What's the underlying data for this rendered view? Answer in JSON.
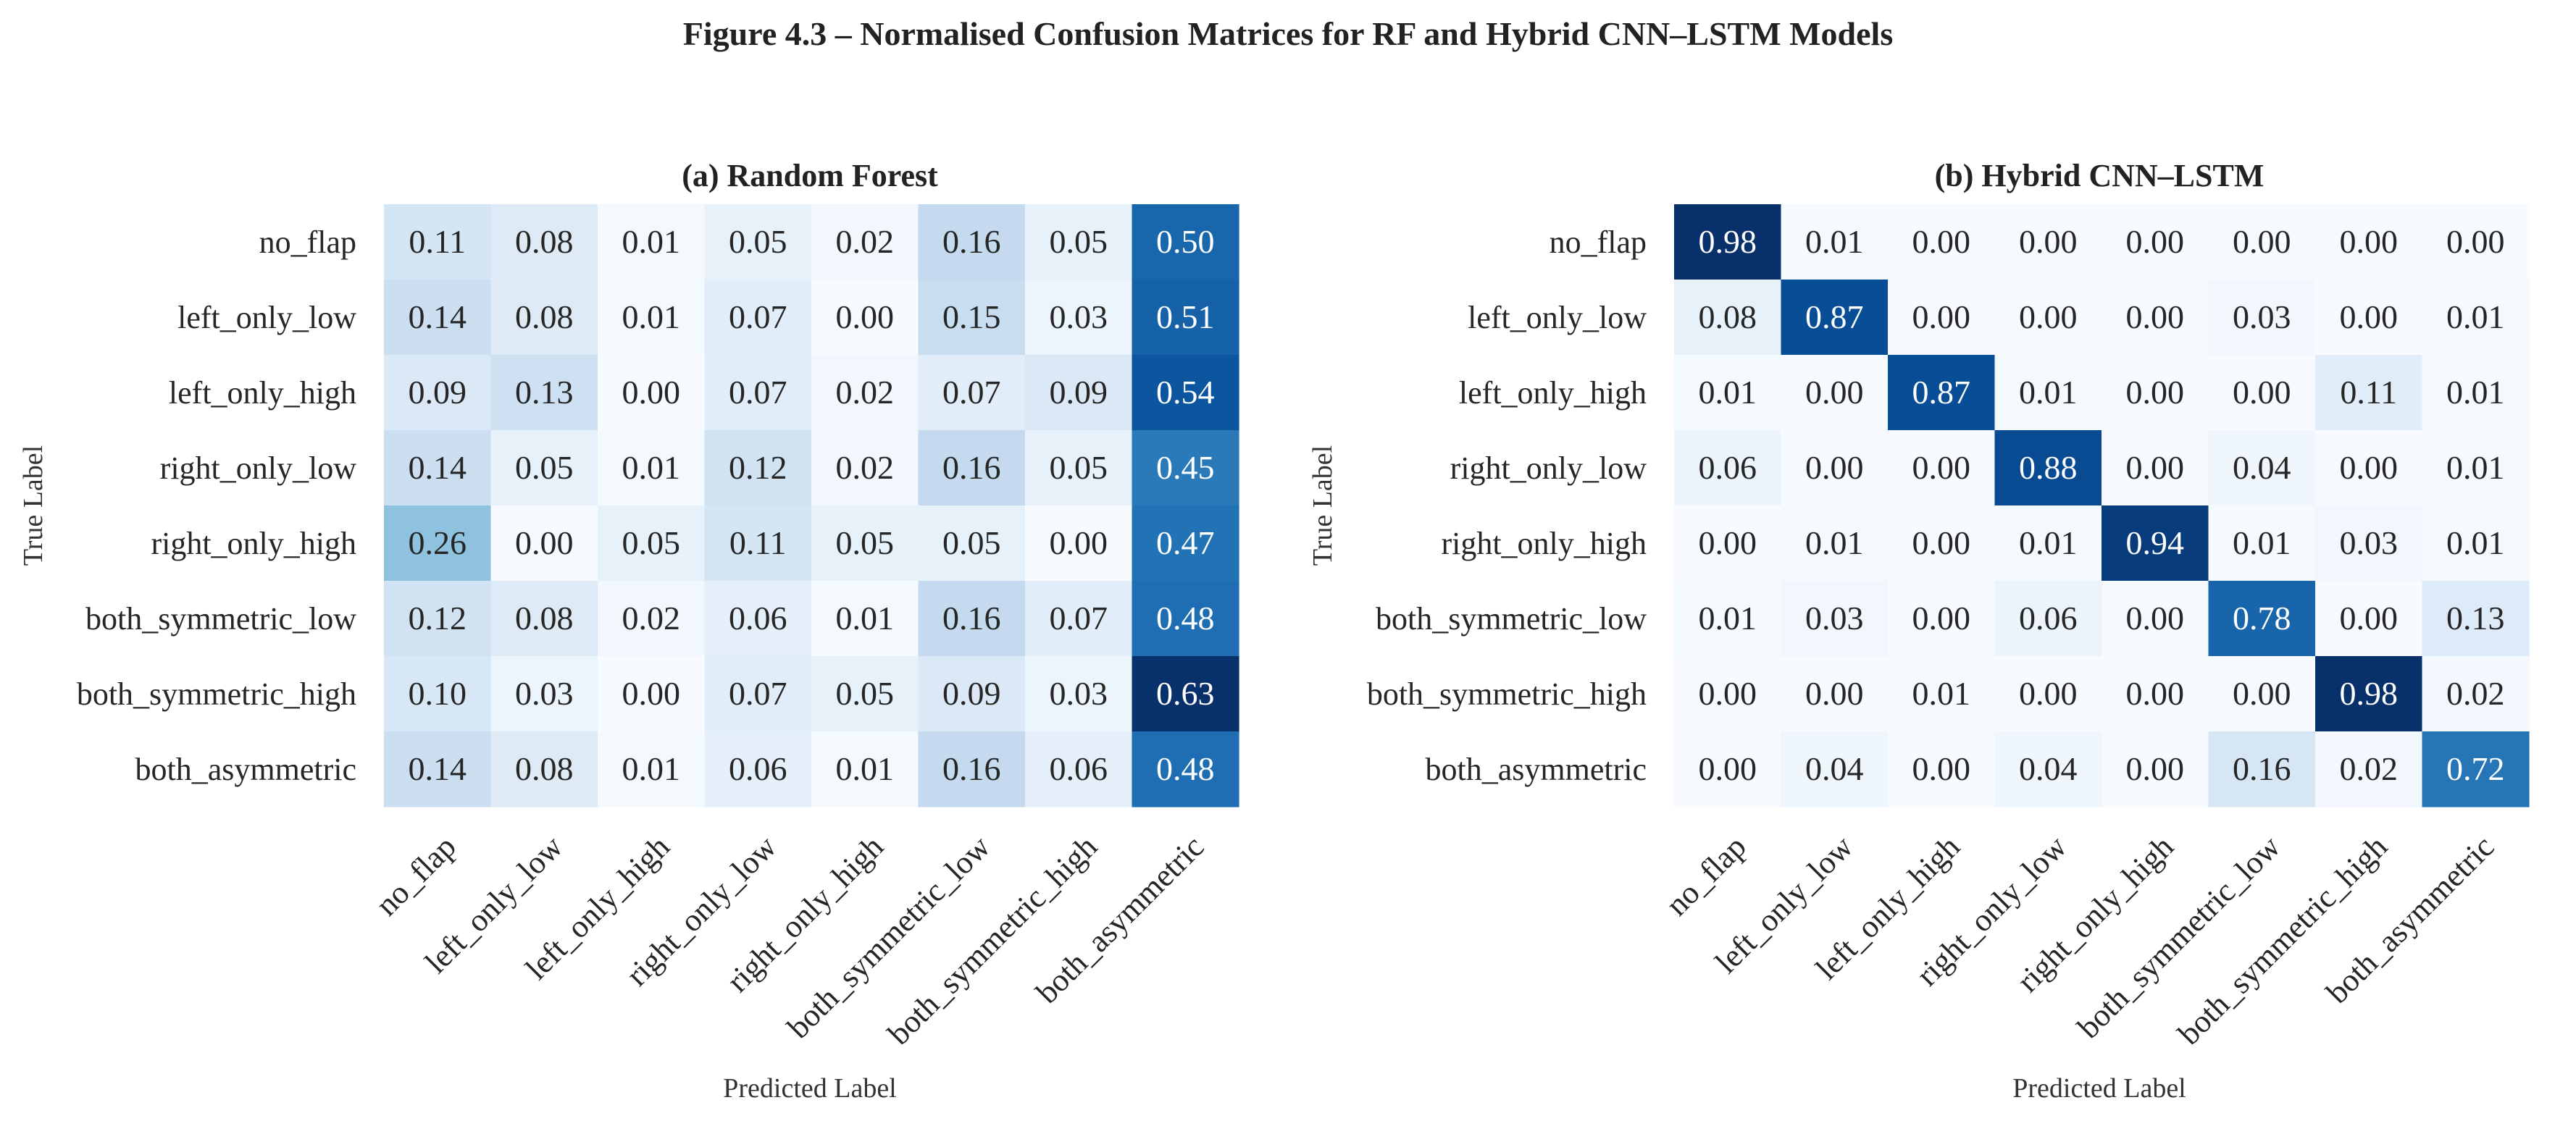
{
  "figure_title": "Figure 4.3 – Normalised Confusion Matrices for RF and Hybrid CNN–LSTM Models",
  "colormap": {
    "name": "Blues",
    "low": "#f7fbff",
    "high": "#08306b",
    "text_dark": "#262626",
    "text_light": "#ffffff"
  },
  "chart_data": [
    {
      "type": "heatmap",
      "title": "(a) Random Forest",
      "xlabel": "Predicted Label",
      "ylabel": "True Label",
      "x_categories": [
        "no_flap",
        "left_only_low",
        "left_only_high",
        "right_only_low",
        "right_only_high",
        "both_symmetric_low",
        "both_symmetric_high",
        "both_asymmetric"
      ],
      "y_categories": [
        "no_flap",
        "left_only_low",
        "left_only_high",
        "right_only_low",
        "right_only_high",
        "both_symmetric_low",
        "both_symmetric_high",
        "both_asymmetric"
      ],
      "value_format": "0.00",
      "values": [
        [
          0.11,
          0.08,
          0.01,
          0.05,
          0.02,
          0.16,
          0.05,
          0.5
        ],
        [
          0.14,
          0.08,
          0.01,
          0.07,
          0.0,
          0.15,
          0.03,
          0.51
        ],
        [
          0.09,
          0.13,
          0.0,
          0.07,
          0.02,
          0.07,
          0.09,
          0.54
        ],
        [
          0.14,
          0.05,
          0.01,
          0.12,
          0.02,
          0.16,
          0.05,
          0.45
        ],
        [
          0.26,
          0.0,
          0.05,
          0.11,
          0.05,
          0.05,
          0.0,
          0.47
        ],
        [
          0.12,
          0.08,
          0.02,
          0.06,
          0.01,
          0.16,
          0.07,
          0.48
        ],
        [
          0.1,
          0.03,
          0.0,
          0.07,
          0.05,
          0.09,
          0.03,
          0.63
        ],
        [
          0.14,
          0.08,
          0.01,
          0.06,
          0.01,
          0.16,
          0.06,
          0.48
        ]
      ],
      "colorbar": false
    },
    {
      "type": "heatmap",
      "title": "(b) Hybrid CNN–LSTM",
      "xlabel": "Predicted Label",
      "ylabel": "True Label",
      "x_categories": [
        "no_flap",
        "left_only_low",
        "left_only_high",
        "right_only_low",
        "right_only_high",
        "both_symmetric_low",
        "both_symmetric_high",
        "both_asymmetric"
      ],
      "y_categories": [
        "no_flap",
        "left_only_low",
        "left_only_high",
        "right_only_low",
        "right_only_high",
        "both_symmetric_low",
        "both_symmetric_high",
        "both_asymmetric"
      ],
      "value_format": "0.00",
      "values": [
        [
          0.98,
          0.01,
          0.0,
          0.0,
          0.0,
          0.0,
          0.0,
          0.0
        ],
        [
          0.08,
          0.87,
          0.0,
          0.0,
          0.0,
          0.03,
          0.0,
          0.01
        ],
        [
          0.01,
          0.0,
          0.87,
          0.01,
          0.0,
          0.0,
          0.11,
          0.01
        ],
        [
          0.06,
          0.0,
          0.0,
          0.88,
          0.0,
          0.04,
          0.0,
          0.01
        ],
        [
          0.0,
          0.01,
          0.0,
          0.01,
          0.94,
          0.01,
          0.03,
          0.01
        ],
        [
          0.01,
          0.03,
          0.0,
          0.06,
          0.0,
          0.78,
          0.0,
          0.13
        ],
        [
          0.0,
          0.0,
          0.01,
          0.0,
          0.0,
          0.0,
          0.98,
          0.02
        ],
        [
          0.0,
          0.04,
          0.0,
          0.04,
          0.0,
          0.16,
          0.02,
          0.72
        ]
      ],
      "colorbar": false
    }
  ]
}
